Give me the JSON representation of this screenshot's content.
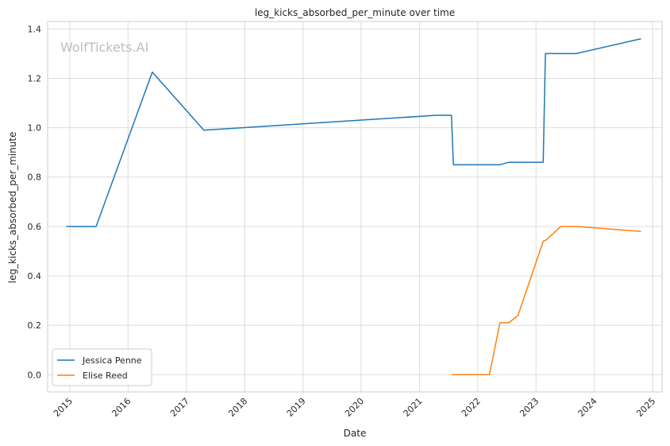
{
  "watermark": "WolfTickets.AI",
  "chart_data": {
    "type": "line",
    "title": "leg_kicks_absorbed_per_minute over time",
    "xlabel": "Date",
    "ylabel": "leg_kicks_absorbed_per_minute",
    "x_type": "date",
    "xlim": [
      "2014-08-15",
      "2025-03-01"
    ],
    "ylim": [
      -0.07,
      1.43
    ],
    "x_ticks": [
      "2015",
      "2016",
      "2017",
      "2018",
      "2019",
      "2020",
      "2021",
      "2022",
      "2023",
      "2024",
      "2025"
    ],
    "y_ticks": [
      "0.0",
      "0.2",
      "0.4",
      "0.6",
      "0.8",
      "1.0",
      "1.2",
      "1.4"
    ],
    "grid": true,
    "legend_position": "bottom-left",
    "series": [
      {
        "name": "Jessica Penne",
        "color": "#1f77b4",
        "points": [
          [
            "2014-12-10",
            0.6
          ],
          [
            "2015-06-15",
            0.6
          ],
          [
            "2016-06-01",
            1.225
          ],
          [
            "2017-04-20",
            0.99
          ],
          [
            "2021-04-15",
            1.05
          ],
          [
            "2021-07-20",
            1.05
          ],
          [
            "2021-08-01",
            0.85
          ],
          [
            "2022-05-20",
            0.85
          ],
          [
            "2022-07-15",
            0.86
          ],
          [
            "2023-02-15",
            0.86
          ],
          [
            "2023-03-01",
            1.3
          ],
          [
            "2023-09-10",
            1.3
          ],
          [
            "2024-10-20",
            1.36
          ]
        ]
      },
      {
        "name": "Elise Reed",
        "color": "#ff7f0e",
        "points": [
          [
            "2021-07-20",
            0.0
          ],
          [
            "2022-03-15",
            0.0
          ],
          [
            "2022-05-20",
            0.21
          ],
          [
            "2022-07-15",
            0.21
          ],
          [
            "2022-09-10",
            0.24
          ],
          [
            "2023-02-15",
            0.54
          ],
          [
            "2023-03-05",
            0.545
          ],
          [
            "2023-06-05",
            0.6
          ],
          [
            "2023-09-10",
            0.6
          ],
          [
            "2024-10-20",
            0.58
          ]
        ]
      }
    ]
  }
}
